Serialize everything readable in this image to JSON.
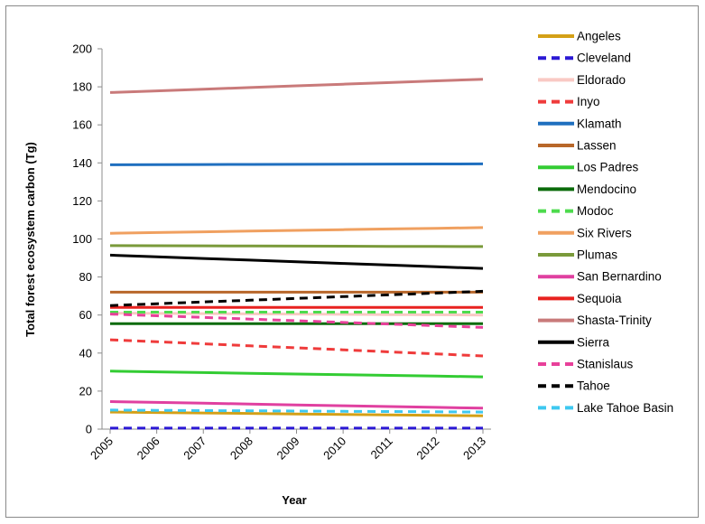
{
  "chart_data": {
    "type": "line",
    "xlabel": "Year",
    "ylabel": "Total forest ecosystem carbon (Tg)",
    "x": [
      "2005",
      "2006",
      "2007",
      "2008",
      "2009",
      "2010",
      "2011",
      "2012",
      "2013"
    ],
    "ylim": [
      0,
      200
    ],
    "yticks": [
      0,
      20,
      40,
      60,
      80,
      100,
      120,
      140,
      160,
      180,
      200
    ],
    "grid": false,
    "legend": "right",
    "series": [
      {
        "name": "Angeles",
        "color": "#d4a017",
        "dashed": false,
        "start": 9,
        "end": 7
      },
      {
        "name": "Cleveland",
        "color": "#2b19d4",
        "dashed": true,
        "start": 0.5,
        "end": 0.5
      },
      {
        "name": "Eldorado",
        "color": "#f9c9c4",
        "dashed": false,
        "start": 61,
        "end": 60
      },
      {
        "name": "Inyo",
        "color": "#ef3b3b",
        "dashed": true,
        "start": 47,
        "end": 38.5
      },
      {
        "name": "Klamath",
        "color": "#1f6fbf",
        "dashed": false,
        "start": 139,
        "end": 139.5
      },
      {
        "name": "Lassen",
        "color": "#b8672a",
        "dashed": false,
        "start": 72,
        "end": 72
      },
      {
        "name": "Los Padres",
        "color": "#33cc33",
        "dashed": false,
        "start": 30.5,
        "end": 27.5
      },
      {
        "name": "Mendocino",
        "color": "#0b6b0b",
        "dashed": false,
        "start": 55.5,
        "end": 55.5
      },
      {
        "name": "Modoc",
        "color": "#4ddb4d",
        "dashed": true,
        "start": 61.5,
        "end": 61.5
      },
      {
        "name": "Six Rivers",
        "color": "#f0a060",
        "dashed": false,
        "start": 103,
        "end": 106
      },
      {
        "name": "Plumas",
        "color": "#7a9a3a",
        "dashed": false,
        "start": 96.5,
        "end": 96
      },
      {
        "name": "San Bernardino",
        "color": "#e040a0",
        "dashed": false,
        "start": 14.5,
        "end": 11
      },
      {
        "name": "Sequoia",
        "color": "#e8211f",
        "dashed": false,
        "start": 64,
        "end": 64
      },
      {
        "name": "Shasta-Trinity",
        "color": "#c97a7a",
        "dashed": false,
        "start": 177,
        "end": 184
      },
      {
        "name": "Sierra",
        "color": "#000000",
        "dashed": false,
        "start": 91.5,
        "end": 84.5
      },
      {
        "name": "Stanislaus",
        "color": "#e8409a",
        "dashed": true,
        "start": 60.5,
        "end": 53.5
      },
      {
        "name": "Tahoe",
        "color": "#000000",
        "dashed": true,
        "start": 65,
        "end": 72.5
      },
      {
        "name": "Lake Tahoe Basin",
        "color": "#3ec8f0",
        "dashed": true,
        "start": 10,
        "end": 9
      }
    ]
  }
}
